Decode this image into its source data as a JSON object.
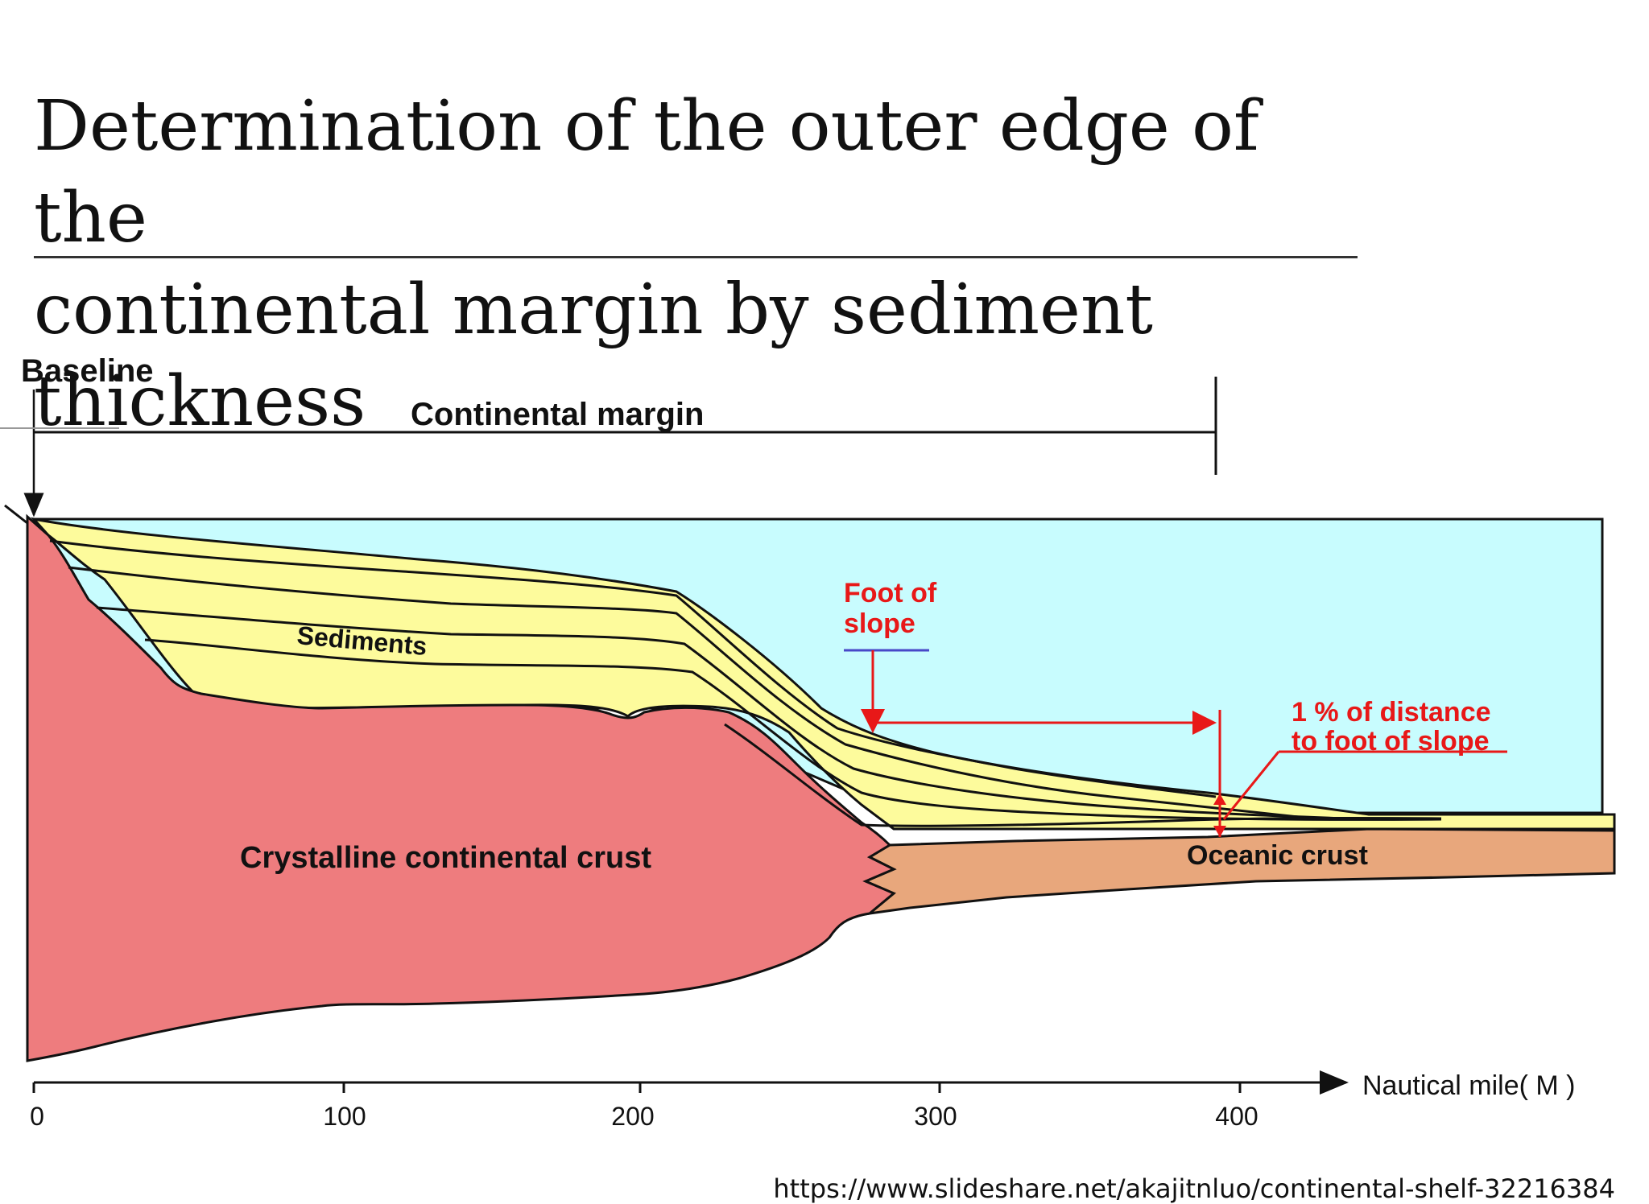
{
  "title": {
    "line1": "Determination of the outer edge of the",
    "line2": "continental margin by sediment thickness"
  },
  "diagram": {
    "baseline_label": "Baseline",
    "continental_margin_label": "Continental margin",
    "sediments_label": "Sediments",
    "crystalline_crust_label": "Crystalline continental crust",
    "oceanic_crust_label": "Oceanic crust",
    "foot_of_slope_label": [
      "Foot of",
      "slope"
    ],
    "one_percent_label": [
      "1 % of distance",
      "to foot of slope"
    ],
    "axis_label": "Nautical mile( M )",
    "ticks": [
      "0",
      "100",
      "200",
      "300",
      "400"
    ],
    "colors": {
      "water": "#c8fcfe",
      "sediment": "#fdfb9c",
      "continental_crust": "#ee7c7e",
      "oceanic_crust": "#e8a77c",
      "annotation": "#e81818",
      "underline_blue": "#4848c8"
    }
  },
  "source_url": "https://www.slideshare.net/akajitnluo/continental-shelf-32216384"
}
